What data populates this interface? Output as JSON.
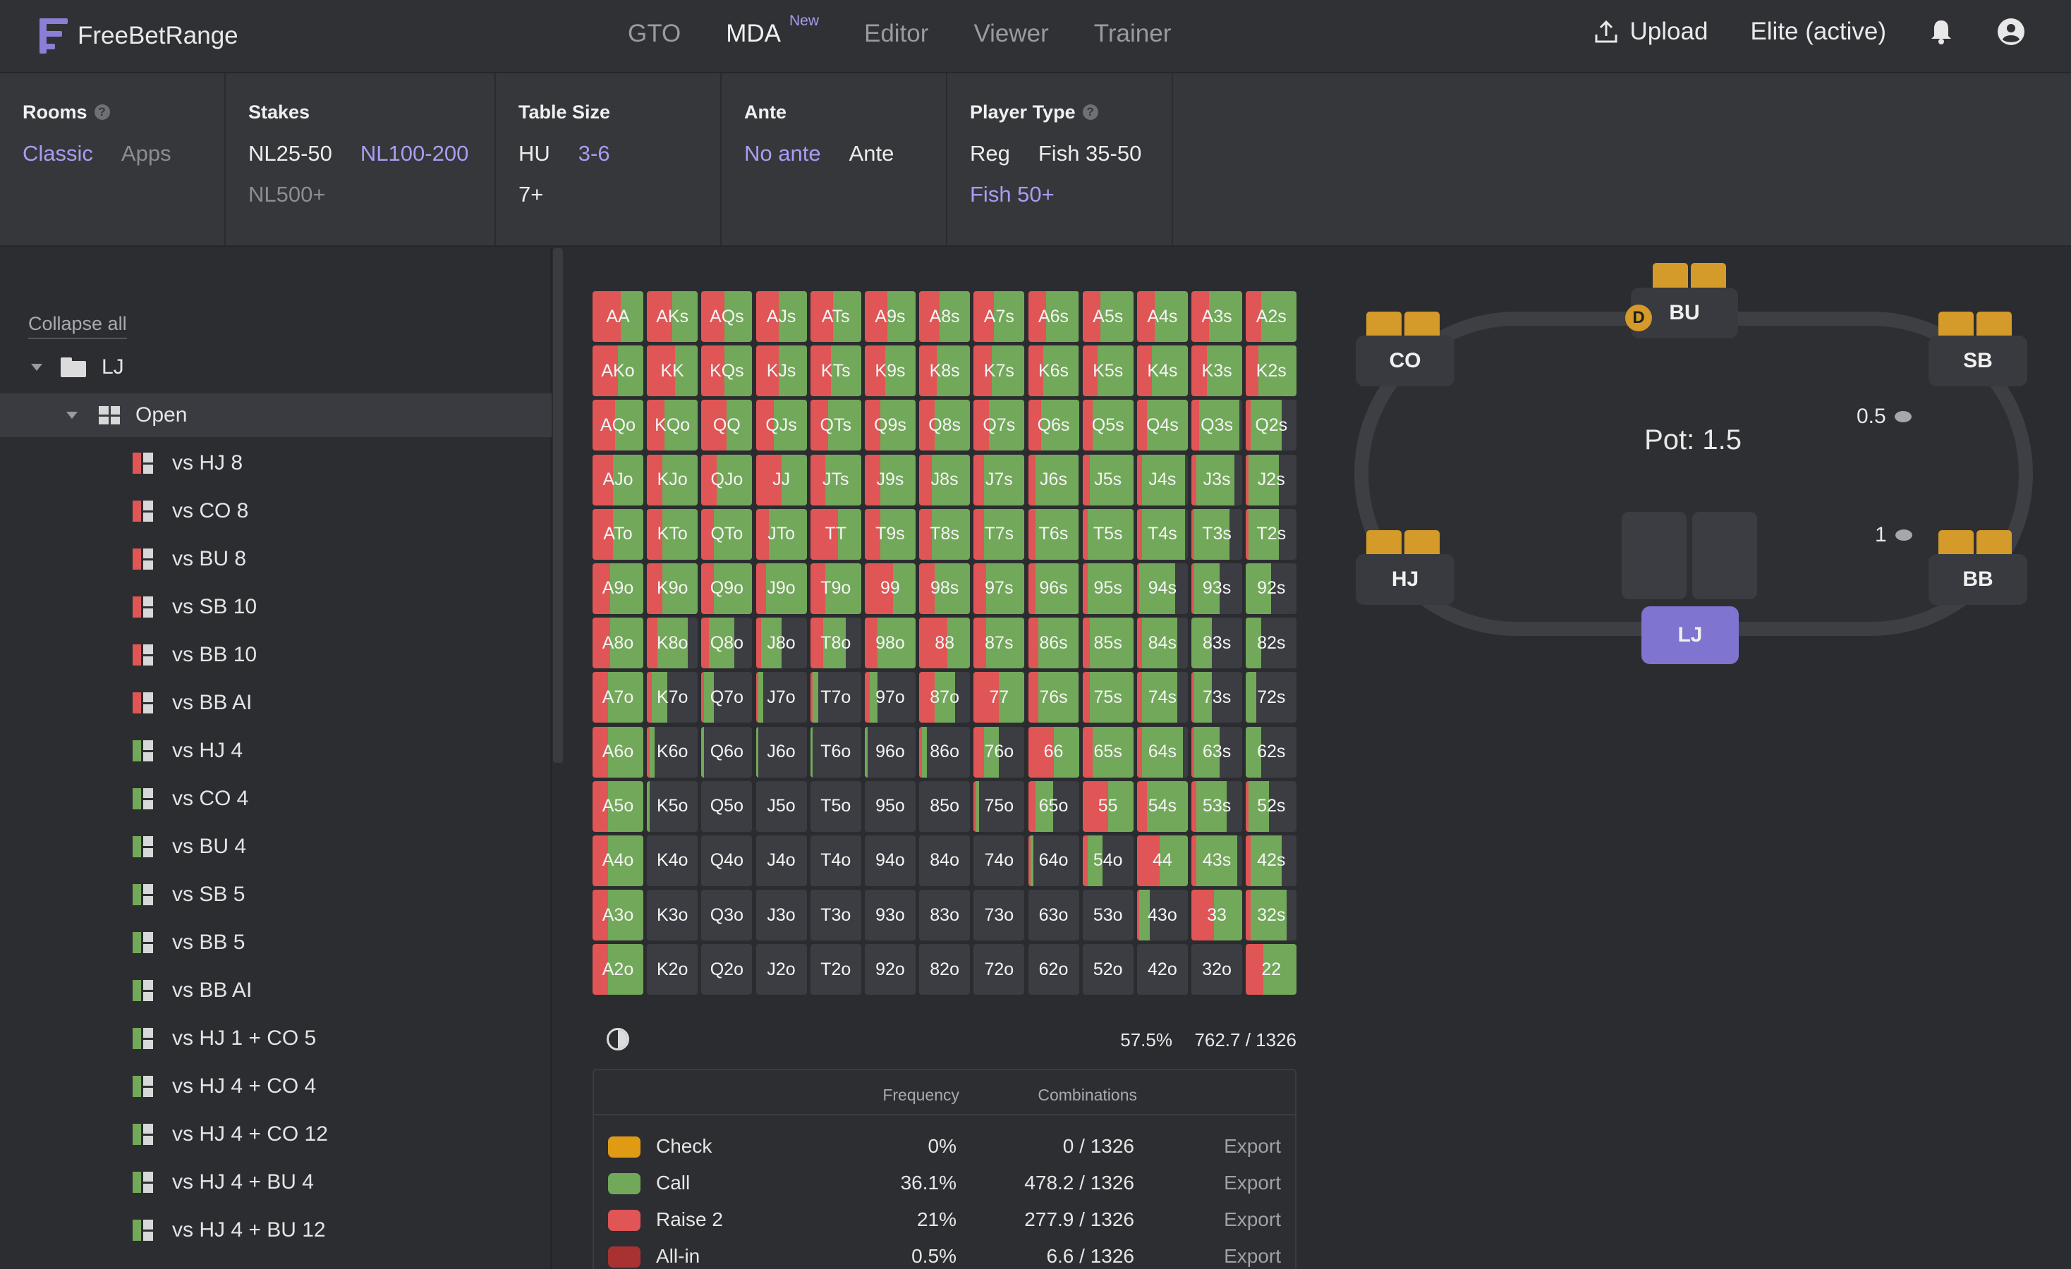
{
  "nav": {
    "brand": "FreeBetRange",
    "links": [
      "GTO",
      "MDA",
      "Editor",
      "Viewer",
      "Trainer"
    ],
    "active_badge": "New",
    "upload": "Upload",
    "plan": "Elite (active)"
  },
  "filters": {
    "rooms": {
      "title": "Rooms",
      "options": [
        "Classic",
        "Apps"
      ]
    },
    "stakes": {
      "title": "Stakes",
      "options": [
        "NL25-50",
        "NL100-200",
        "NL500+"
      ]
    },
    "table_size": {
      "title": "Table Size",
      "options": [
        "HU",
        "3-6",
        "7+"
      ]
    },
    "ante": {
      "title": "Ante",
      "options": [
        "No ante",
        "Ante"
      ]
    },
    "player_type": {
      "title": "Player Type",
      "options": [
        "Reg",
        "Fish 35-50",
        "Fish 50+"
      ]
    }
  },
  "sidebar": {
    "collapse": "Collapse all",
    "root": "LJ",
    "node": "Open",
    "items": [
      "vs HJ 8",
      "vs CO 8",
      "vs BU 8",
      "vs SB 10",
      "vs BB 10",
      "vs BB AI",
      "vs HJ 4",
      "vs CO 4",
      "vs BU 4",
      "vs SB 5",
      "vs BB 5",
      "vs BB AI",
      "vs HJ 1 + CO 5",
      "vs HJ 4 + CO 4",
      "vs HJ 4 + CO 12",
      "vs HJ 4 + BU 4",
      "vs HJ 4 + BU 12"
    ]
  },
  "matrix": {
    "ranks": [
      "A",
      "K",
      "Q",
      "J",
      "T",
      "9",
      "8",
      "7",
      "6",
      "5",
      "4",
      "3",
      "2"
    ],
    "raise_frac": [
      [
        0.55,
        0.5,
        0.45,
        0.45,
        0.45,
        0.45,
        0.4,
        0.4,
        0.35,
        0.35,
        0.35,
        0.35,
        0.3
      ],
      [
        0.5,
        0.55,
        0.45,
        0.45,
        0.4,
        0.4,
        0.35,
        0.35,
        0.3,
        0.3,
        0.3,
        0.3,
        0.25
      ],
      [
        0.45,
        0.35,
        0.5,
        0.35,
        0.35,
        0.3,
        0.3,
        0.3,
        0.25,
        0.2,
        0.2,
        0.15,
        0.1
      ],
      [
        0.4,
        0.3,
        0.3,
        0.5,
        0.3,
        0.3,
        0.25,
        0.2,
        0.15,
        0.15,
        0.1,
        0.1,
        0.05
      ],
      [
        0.4,
        0.3,
        0.25,
        0.25,
        0.55,
        0.3,
        0.25,
        0.2,
        0.15,
        0.1,
        0.1,
        0.05,
        0.05
      ],
      [
        0.35,
        0.3,
        0.25,
        0.2,
        0.3,
        0.55,
        0.3,
        0.25,
        0.15,
        0.1,
        0.05,
        0.05,
        0.0
      ],
      [
        0.35,
        0.2,
        0.15,
        0.1,
        0.25,
        0.25,
        0.55,
        0.25,
        0.2,
        0.15,
        0.1,
        0.0,
        0.0
      ],
      [
        0.3,
        0.1,
        0.05,
        0.05,
        0.05,
        0.1,
        0.3,
        0.5,
        0.2,
        0.15,
        0.1,
        0.05,
        0.0
      ],
      [
        0.3,
        0.05,
        0.0,
        0.0,
        0.0,
        0.0,
        0.05,
        0.2,
        0.5,
        0.2,
        0.1,
        0.05,
        0.0
      ],
      [
        0.3,
        0.0,
        0.0,
        0.0,
        0.0,
        0.0,
        0.0,
        0.05,
        0.15,
        0.5,
        0.2,
        0.1,
        0.05
      ],
      [
        0.3,
        0.0,
        0.0,
        0.0,
        0.0,
        0.0,
        0.0,
        0.0,
        0.05,
        0.1,
        0.45,
        0.1,
        0.1
      ],
      [
        0.3,
        0.0,
        0.0,
        0.0,
        0.0,
        0.0,
        0.0,
        0.0,
        0.0,
        0.0,
        0.05,
        0.45,
        0.1
      ],
      [
        0.3,
        0.0,
        0.0,
        0.0,
        0.0,
        0.0,
        0.0,
        0.0,
        0.0,
        0.0,
        0.0,
        0.0,
        0.35
      ]
    ],
    "call_frac": [
      [
        0.45,
        0.5,
        0.55,
        0.55,
        0.55,
        0.55,
        0.6,
        0.6,
        0.65,
        0.65,
        0.65,
        0.65,
        0.7
      ],
      [
        0.5,
        0.45,
        0.55,
        0.55,
        0.6,
        0.6,
        0.65,
        0.65,
        0.7,
        0.7,
        0.7,
        0.7,
        0.75
      ],
      [
        0.55,
        0.65,
        0.5,
        0.65,
        0.65,
        0.7,
        0.7,
        0.7,
        0.75,
        0.8,
        0.8,
        0.8,
        0.6
      ],
      [
        0.6,
        0.7,
        0.7,
        0.5,
        0.7,
        0.7,
        0.75,
        0.8,
        0.85,
        0.85,
        0.85,
        0.75,
        0.6
      ],
      [
        0.6,
        0.7,
        0.75,
        0.75,
        0.45,
        0.7,
        0.75,
        0.8,
        0.85,
        0.9,
        0.85,
        0.7,
        0.6
      ],
      [
        0.65,
        0.7,
        0.75,
        0.8,
        0.7,
        0.45,
        0.7,
        0.75,
        0.85,
        0.9,
        0.7,
        0.5,
        0.5
      ],
      [
        0.65,
        0.6,
        0.5,
        0.4,
        0.45,
        0.75,
        0.45,
        0.75,
        0.8,
        0.85,
        0.7,
        0.4,
        0.3
      ],
      [
        0.7,
        0.3,
        0.2,
        0.1,
        0.1,
        0.15,
        0.4,
        0.5,
        0.8,
        0.85,
        0.7,
        0.35,
        0.2
      ],
      [
        0.7,
        0.1,
        0.05,
        0.05,
        0.05,
        0.05,
        0.1,
        0.3,
        0.5,
        0.8,
        0.8,
        0.5,
        0.3
      ],
      [
        0.7,
        0.05,
        0.0,
        0.0,
        0.0,
        0.0,
        0.0,
        0.05,
        0.35,
        0.5,
        0.8,
        0.6,
        0.4
      ],
      [
        0.7,
        0.0,
        0.0,
        0.0,
        0.0,
        0.0,
        0.0,
        0.0,
        0.05,
        0.3,
        0.55,
        0.8,
        0.6
      ],
      [
        0.7,
        0.0,
        0.0,
        0.0,
        0.0,
        0.0,
        0.0,
        0.0,
        0.0,
        0.0,
        0.2,
        0.55,
        0.7
      ],
      [
        0.7,
        0.0,
        0.0,
        0.0,
        0.0,
        0.0,
        0.0,
        0.0,
        0.0,
        0.0,
        0.0,
        0.0,
        0.65
      ]
    ]
  },
  "summary": {
    "pct": "57.5%",
    "combos": "762.7 / 1326"
  },
  "actions": {
    "headers": {
      "frequency": "Frequency",
      "combinations": "Combinations"
    },
    "rows": [
      {
        "name": "Check",
        "freq": "0%",
        "combos": "0 / 1326",
        "export": "Export",
        "color": "#e09a14"
      },
      {
        "name": "Call",
        "freq": "36.1%",
        "combos": "478.2 / 1326",
        "export": "Export",
        "color": "#72a85a"
      },
      {
        "name": "Raise 2",
        "freq": "21%",
        "combos": "277.9 / 1326",
        "export": "Export",
        "color": "#e05555"
      },
      {
        "name": "All-in",
        "freq": "0.5%",
        "combos": "6.6 / 1326",
        "export": "Export",
        "color": "#a83232"
      }
    ]
  },
  "table": {
    "pot": "Pot: 1.5",
    "seats": {
      "co": "CO",
      "bu": "BU",
      "sb": "SB",
      "hj": "HJ",
      "bb": "BB",
      "lj": "LJ"
    },
    "dealer": "D",
    "sb_bet": "0.5",
    "bb_bet": "1"
  },
  "colors": {
    "raise": "#e05555",
    "call": "#72a85a",
    "empty": "#3c3d42",
    "accent": "#8b7ed6"
  }
}
